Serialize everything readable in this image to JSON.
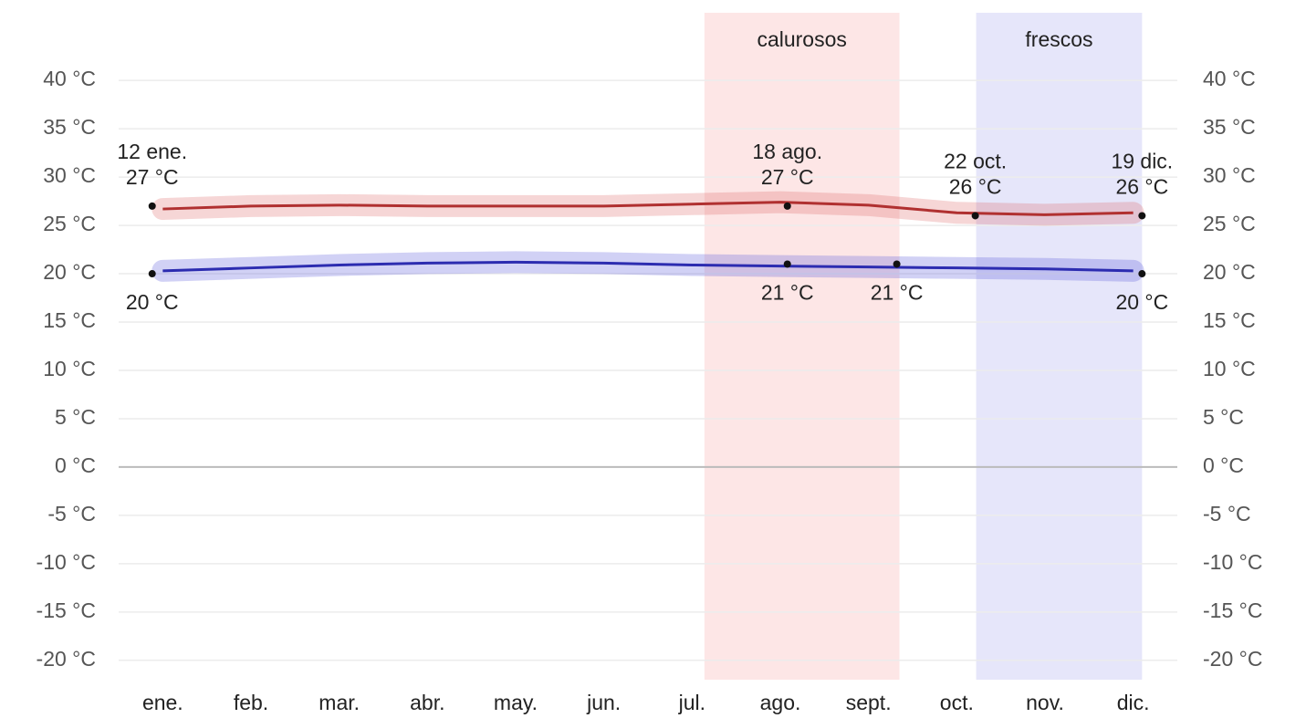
{
  "chart_data": {
    "type": "line",
    "categories": [
      "ene.",
      "feb.",
      "mar.",
      "abr.",
      "may.",
      "jun.",
      "jul.",
      "ago.",
      "sept.",
      "oct.",
      "nov.",
      "dic."
    ],
    "ylim": [
      -22,
      47
    ],
    "yticks": [
      {
        "value": -20,
        "label": "-20 °C"
      },
      {
        "value": -15,
        "label": "-15 °C"
      },
      {
        "value": -10,
        "label": "-10 °C"
      },
      {
        "value": -5,
        "label": "-5 °C"
      },
      {
        "value": 0,
        "label": "0 °C"
      },
      {
        "value": 5,
        "label": "5 °C"
      },
      {
        "value": 10,
        "label": "10 °C"
      },
      {
        "value": 15,
        "label": "15 °C"
      },
      {
        "value": 20,
        "label": "20 °C"
      },
      {
        "value": 25,
        "label": "25 °C"
      },
      {
        "value": 30,
        "label": "30 °C"
      },
      {
        "value": 35,
        "label": "35 °C"
      },
      {
        "value": 40,
        "label": "40 °C"
      }
    ],
    "grid": true,
    "regions": [
      {
        "label": "calurosos",
        "start": 6.64,
        "end": 8.85,
        "color": "#fde6e6"
      },
      {
        "label": "frescos",
        "start": 9.72,
        "end": 11.6,
        "color": "#e6e6fa"
      }
    ],
    "series": [
      {
        "color": "#b03030",
        "band_color": "rgba(220,90,90,0.25)",
        "values": [
          26.7,
          27.0,
          27.1,
          27.0,
          27.0,
          27.0,
          27.2,
          27.4,
          27.1,
          26.3,
          26.1,
          26.3
        ],
        "points": [
          {
            "x": 0.38,
            "date": "12 ene.",
            "value": 27,
            "value_label": "27 °C"
          },
          {
            "x": 7.58,
            "date": "18 ago.",
            "value": 27,
            "value_label": "27 °C"
          },
          {
            "x": 9.71,
            "date": "22 oct.",
            "value": 26,
            "value_label": "26 °C"
          },
          {
            "x": 11.6,
            "date": "19 dic.",
            "value": 26,
            "value_label": "26 °C"
          }
        ]
      },
      {
        "color": "#2c2cb0",
        "band_color": "rgba(90,90,220,0.28)",
        "values": [
          20.3,
          20.6,
          20.9,
          21.1,
          21.2,
          21.1,
          20.9,
          20.8,
          20.7,
          20.6,
          20.5,
          20.3
        ],
        "points": [
          {
            "x": 0.38,
            "value": 20,
            "value_label": "20 °C"
          },
          {
            "x": 7.58,
            "value": 21,
            "value_label": "21 °C"
          },
          {
            "x": 8.82,
            "value": 21,
            "value_label": "21 °C"
          },
          {
            "x": 11.6,
            "value": 20,
            "value_label": "20 °C"
          }
        ]
      }
    ]
  }
}
